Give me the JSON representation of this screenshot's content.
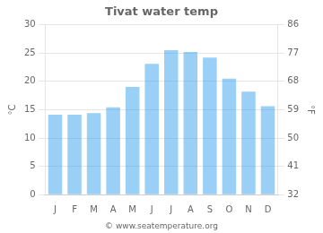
{
  "chart_data": {
    "type": "bar",
    "title": "Tivat water temp",
    "categories": [
      "J",
      "F",
      "M",
      "A",
      "M",
      "J",
      "J",
      "A",
      "S",
      "O",
      "N",
      "D"
    ],
    "values": [
      14.1,
      14.1,
      14.4,
      15.4,
      19.0,
      23.1,
      25.5,
      25.2,
      24.2,
      20.5,
      18.2,
      15.6
    ],
    "ylabel": "°C",
    "y2label": "°F",
    "ylim": [
      0,
      30
    ],
    "yticks": [
      0,
      5,
      10,
      15,
      20,
      25,
      30
    ],
    "y2lim": [
      32,
      86
    ],
    "y2ticks": [
      32,
      41,
      50,
      59,
      68,
      77,
      86
    ],
    "grid": true,
    "annotations": [
      "© www.seatemperature.org"
    ]
  }
}
